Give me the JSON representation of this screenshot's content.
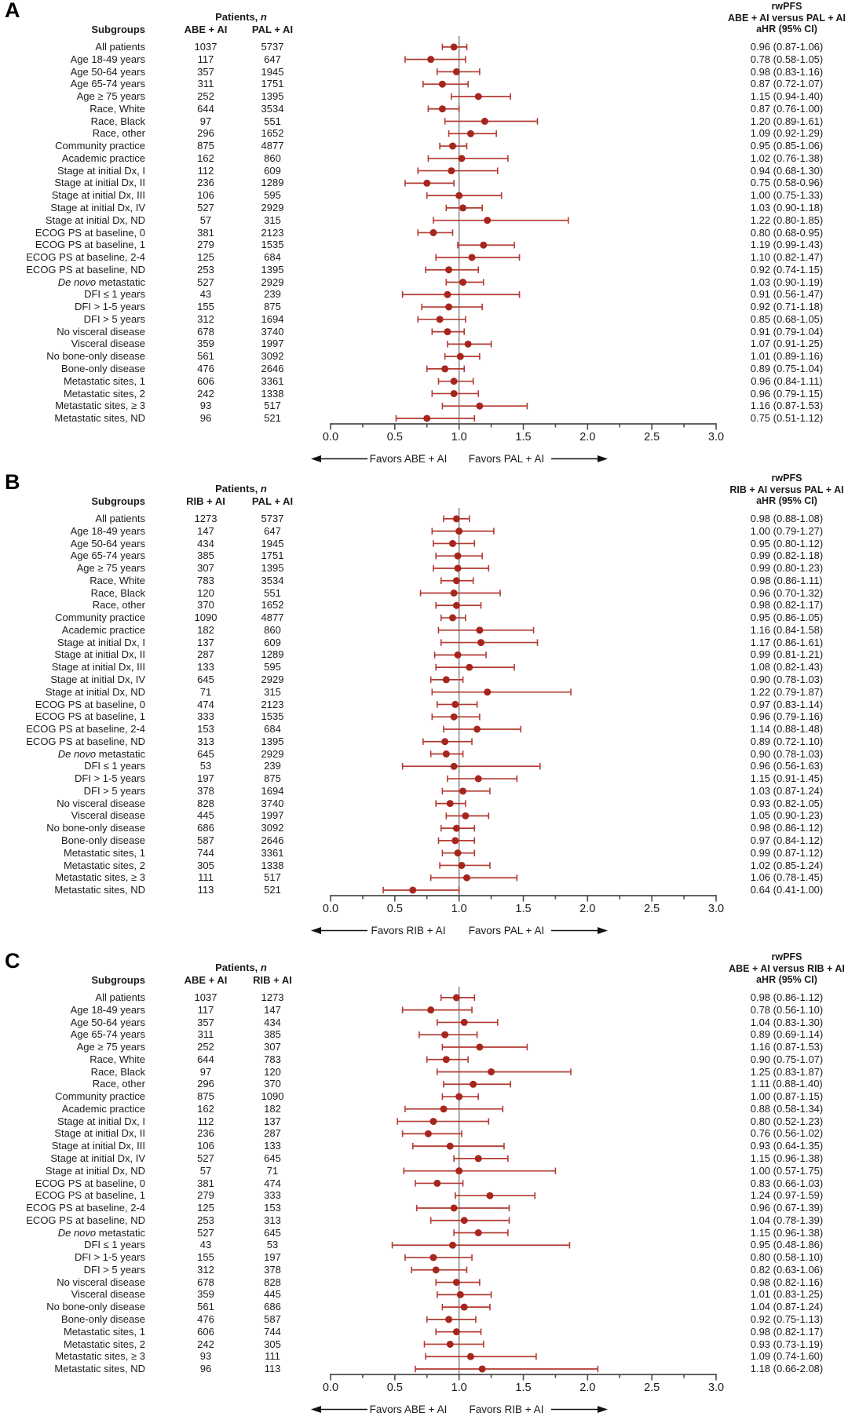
{
  "colors": {
    "marker": "#a6261e",
    "ci_line": "#b23a30",
    "axis": "#4c4c4c",
    "ref_line": "#8c8c8c",
    "arrow": "#111111",
    "text": "#1b1b1b"
  },
  "chart_data": {
    "type": "forest",
    "orientation": "horizontal",
    "x_axis": {
      "min": 0,
      "max": 3,
      "tick_labels": [
        "0.0",
        "0.5",
        "1.0",
        "1.5",
        "2.0",
        "2.5",
        "3.0"
      ],
      "major_tick_step": 0.5,
      "minor_tick_step": 0.25,
      "reference_line": 1.0,
      "grid": false
    },
    "headers": {
      "patients": "Patients,",
      "patients_n": "n",
      "subgroups": "Subgroups",
      "outcome": "rwPFS",
      "measure": "aHR (95% CI)"
    },
    "panels": [
      {
        "letter": "A",
        "col1": "ABE + AI",
        "col2": "PAL + AI",
        "comparison": "ABE + AI versus PAL + AI",
        "favors_left": "Favors ABE + AI",
        "favors_right": "Favors PAL + AI",
        "rows": [
          {
            "label": "All patients",
            "n1": "1037",
            "n2": "5737",
            "hr": 0.96,
            "lo": 0.87,
            "hi": 1.06
          },
          {
            "label": "Age 18-49 years",
            "n1": "117",
            "n2": "647",
            "hr": 0.78,
            "lo": 0.58,
            "hi": 1.05
          },
          {
            "label": "Age 50-64 years",
            "n1": "357",
            "n2": "1945",
            "hr": 0.98,
            "lo": 0.83,
            "hi": 1.16
          },
          {
            "label": "Age 65-74 years",
            "n1": "311",
            "n2": "1751",
            "hr": 0.87,
            "lo": 0.72,
            "hi": 1.07
          },
          {
            "label": "Age ≥ 75 years",
            "n1": "252",
            "n2": "1395",
            "hr": 1.15,
            "lo": 0.94,
            "hi": 1.4
          },
          {
            "label": "Race, White",
            "n1": "644",
            "n2": "3534",
            "hr": 0.87,
            "lo": 0.76,
            "hi": 1.0
          },
          {
            "label": "Race, Black",
            "n1": "97",
            "n2": "551",
            "hr": 1.2,
            "lo": 0.89,
            "hi": 1.61
          },
          {
            "label": "Race, other",
            "n1": "296",
            "n2": "1652",
            "hr": 1.09,
            "lo": 0.92,
            "hi": 1.29
          },
          {
            "label": "Community practice",
            "n1": "875",
            "n2": "4877",
            "hr": 0.95,
            "lo": 0.85,
            "hi": 1.06
          },
          {
            "label": "Academic practice",
            "n1": "162",
            "n2": "860",
            "hr": 1.02,
            "lo": 0.76,
            "hi": 1.38
          },
          {
            "label": "Stage at initial Dx, I",
            "n1": "112",
            "n2": "609",
            "hr": 0.94,
            "lo": 0.68,
            "hi": 1.3
          },
          {
            "label": "Stage at initial Dx, II",
            "n1": "236",
            "n2": "1289",
            "hr": 0.75,
            "lo": 0.58,
            "hi": 0.96
          },
          {
            "label": "Stage at initial Dx, III",
            "n1": "106",
            "n2": "595",
            "hr": 1.0,
            "lo": 0.75,
            "hi": 1.33
          },
          {
            "label": "Stage at initial Dx, IV",
            "n1": "527",
            "n2": "2929",
            "hr": 1.03,
            "lo": 0.9,
            "hi": 1.18
          },
          {
            "label": "Stage at initial Dx, ND",
            "n1": "57",
            "n2": "315",
            "hr": 1.22,
            "lo": 0.8,
            "hi": 1.85
          },
          {
            "label": "ECOG PS at baseline, 0",
            "n1": "381",
            "n2": "2123",
            "hr": 0.8,
            "lo": 0.68,
            "hi": 0.95
          },
          {
            "label": "ECOG PS at baseline, 1",
            "n1": "279",
            "n2": "1535",
            "hr": 1.19,
            "lo": 0.99,
            "hi": 1.43
          },
          {
            "label": "ECOG PS at baseline, 2-4",
            "n1": "125",
            "n2": "684",
            "hr": 1.1,
            "lo": 0.82,
            "hi": 1.47
          },
          {
            "label": "ECOG PS at baseline, ND",
            "n1": "253",
            "n2": "1395",
            "hr": 0.92,
            "lo": 0.74,
            "hi": 1.15
          },
          {
            "em": "De novo",
            "label": "metastatic",
            "n1": "527",
            "n2": "2929",
            "hr": 1.03,
            "lo": 0.9,
            "hi": 1.19
          },
          {
            "label": "DFI ≤ 1 years",
            "n1": "43",
            "n2": "239",
            "hr": 0.91,
            "lo": 0.56,
            "hi": 1.47
          },
          {
            "label": "DFI > 1-5 years",
            "n1": "155",
            "n2": "875",
            "hr": 0.92,
            "lo": 0.71,
            "hi": 1.18
          },
          {
            "label": "DFI > 5 years",
            "n1": "312",
            "n2": "1694",
            "hr": 0.85,
            "lo": 0.68,
            "hi": 1.05
          },
          {
            "label": "No visceral disease",
            "n1": "678",
            "n2": "3740",
            "hr": 0.91,
            "lo": 0.79,
            "hi": 1.04
          },
          {
            "label": "Visceral disease",
            "n1": "359",
            "n2": "1997",
            "hr": 1.07,
            "lo": 0.91,
            "hi": 1.25
          },
          {
            "label": "No bone-only disease",
            "n1": "561",
            "n2": "3092",
            "hr": 1.01,
            "lo": 0.89,
            "hi": 1.16
          },
          {
            "label": "Bone-only disease",
            "n1": "476",
            "n2": "2646",
            "hr": 0.89,
            "lo": 0.75,
            "hi": 1.04
          },
          {
            "label": "Metastatic sites, 1",
            "n1": "606",
            "n2": "3361",
            "hr": 0.96,
            "lo": 0.84,
            "hi": 1.11
          },
          {
            "label": "Metastatic sites, 2",
            "n1": "242",
            "n2": "1338",
            "hr": 0.96,
            "lo": 0.79,
            "hi": 1.15
          },
          {
            "label": "Metastatic sites, ≥ 3",
            "n1": "93",
            "n2": "517",
            "hr": 1.16,
            "lo": 0.87,
            "hi": 1.53
          },
          {
            "label": "Metastatic sites, ND",
            "n1": "96",
            "n2": "521",
            "hr": 0.75,
            "lo": 0.51,
            "hi": 1.12
          }
        ]
      },
      {
        "letter": "B",
        "col1": "RIB + AI",
        "col2": "PAL + AI",
        "comparison": "RIB + AI versus PAL + AI",
        "favors_left": "Favors RIB + AI",
        "favors_right": "Favors PAL + AI",
        "rows": [
          {
            "label": "All patients",
            "n1": "1273",
            "n2": "5737",
            "hr": 0.98,
            "lo": 0.88,
            "hi": 1.08
          },
          {
            "label": "Age 18-49 years",
            "n1": "147",
            "n2": "647",
            "hr": 1.0,
            "lo": 0.79,
            "hi": 1.27
          },
          {
            "label": "Age 50-64 years",
            "n1": "434",
            "n2": "1945",
            "hr": 0.95,
            "lo": 0.8,
            "hi": 1.12
          },
          {
            "label": "Age 65-74 years",
            "n1": "385",
            "n2": "1751",
            "hr": 0.99,
            "lo": 0.82,
            "hi": 1.18
          },
          {
            "label": "Age ≥ 75 years",
            "n1": "307",
            "n2": "1395",
            "hr": 0.99,
            "lo": 0.8,
            "hi": 1.23
          },
          {
            "label": "Race, White",
            "n1": "783",
            "n2": "3534",
            "hr": 0.98,
            "lo": 0.86,
            "hi": 1.11
          },
          {
            "label": "Race, Black",
            "n1": "120",
            "n2": "551",
            "hr": 0.96,
            "lo": 0.7,
            "hi": 1.32
          },
          {
            "label": "Race, other",
            "n1": "370",
            "n2": "1652",
            "hr": 0.98,
            "lo": 0.82,
            "hi": 1.17
          },
          {
            "label": "Community practice",
            "n1": "1090",
            "n2": "4877",
            "hr": 0.95,
            "lo": 0.86,
            "hi": 1.05
          },
          {
            "label": "Academic practice",
            "n1": "182",
            "n2": "860",
            "hr": 1.16,
            "lo": 0.84,
            "hi": 1.58
          },
          {
            "label": "Stage at initial Dx, I",
            "n1": "137",
            "n2": "609",
            "hr": 1.17,
            "lo": 0.86,
            "hi": 1.61
          },
          {
            "label": "Stage at initial Dx, II",
            "n1": "287",
            "n2": "1289",
            "hr": 0.99,
            "lo": 0.81,
            "hi": 1.21
          },
          {
            "label": "Stage at initial Dx, III",
            "n1": "133",
            "n2": "595",
            "hr": 1.08,
            "lo": 0.82,
            "hi": 1.43
          },
          {
            "label": "Stage at initial Dx, IV",
            "n1": "645",
            "n2": "2929",
            "hr": 0.9,
            "lo": 0.78,
            "hi": 1.03
          },
          {
            "label": "Stage at initial Dx, ND",
            "n1": "71",
            "n2": "315",
            "hr": 1.22,
            "lo": 0.79,
            "hi": 1.87
          },
          {
            "label": "ECOG PS at baseline, 0",
            "n1": "474",
            "n2": "2123",
            "hr": 0.97,
            "lo": 0.83,
            "hi": 1.14
          },
          {
            "label": "ECOG PS at baseline, 1",
            "n1": "333",
            "n2": "1535",
            "hr": 0.96,
            "lo": 0.79,
            "hi": 1.16
          },
          {
            "label": "ECOG PS at baseline, 2-4",
            "n1": "153",
            "n2": "684",
            "hr": 1.14,
            "lo": 0.88,
            "hi": 1.48
          },
          {
            "label": "ECOG PS at baseline, ND",
            "n1": "313",
            "n2": "1395",
            "hr": 0.89,
            "lo": 0.72,
            "hi": 1.1
          },
          {
            "em": "De novo",
            "label": "metastatic",
            "n1": "645",
            "n2": "2929",
            "hr": 0.9,
            "lo": 0.78,
            "hi": 1.03
          },
          {
            "label": "DFI ≤ 1 years",
            "n1": "53",
            "n2": "239",
            "hr": 0.96,
            "lo": 0.56,
            "hi": 1.63
          },
          {
            "label": "DFI > 1-5 years",
            "n1": "197",
            "n2": "875",
            "hr": 1.15,
            "lo": 0.91,
            "hi": 1.45
          },
          {
            "label": "DFI > 5 years",
            "n1": "378",
            "n2": "1694",
            "hr": 1.03,
            "lo": 0.87,
            "hi": 1.24
          },
          {
            "label": "No visceral disease",
            "n1": "828",
            "n2": "3740",
            "hr": 0.93,
            "lo": 0.82,
            "hi": 1.05
          },
          {
            "label": "Visceral disease",
            "n1": "445",
            "n2": "1997",
            "hr": 1.05,
            "lo": 0.9,
            "hi": 1.23
          },
          {
            "label": "No bone-only disease",
            "n1": "686",
            "n2": "3092",
            "hr": 0.98,
            "lo": 0.86,
            "hi": 1.12
          },
          {
            "label": "Bone-only disease",
            "n1": "587",
            "n2": "2646",
            "hr": 0.97,
            "lo": 0.84,
            "hi": 1.12
          },
          {
            "label": "Metastatic sites, 1",
            "n1": "744",
            "n2": "3361",
            "hr": 0.99,
            "lo": 0.87,
            "hi": 1.12
          },
          {
            "label": "Metastatic sites, 2",
            "n1": "305",
            "n2": "1338",
            "hr": 1.02,
            "lo": 0.85,
            "hi": 1.24
          },
          {
            "label": "Metastatic sites, ≥ 3",
            "n1": "111",
            "n2": "517",
            "hr": 1.06,
            "lo": 0.78,
            "hi": 1.45
          },
          {
            "label": "Metastatic sites, ND",
            "n1": "113",
            "n2": "521",
            "hr": 0.64,
            "lo": 0.41,
            "hi": 1.0
          }
        ]
      },
      {
        "letter": "C",
        "col1": "ABE + AI",
        "col2": "RIB + AI",
        "comparison": "ABE + AI versus RIB + AI",
        "favors_left": "Favors ABE + AI",
        "favors_right": "Favors RIB + AI",
        "rows": [
          {
            "label": "All patients",
            "n1": "1037",
            "n2": "1273",
            "hr": 0.98,
            "lo": 0.86,
            "hi": 1.12
          },
          {
            "label": "Age 18-49 years",
            "n1": "117",
            "n2": "147",
            "hr": 0.78,
            "lo": 0.56,
            "hi": 1.1
          },
          {
            "label": "Age 50-64 years",
            "n1": "357",
            "n2": "434",
            "hr": 1.04,
            "lo": 0.83,
            "hi": 1.3
          },
          {
            "label": "Age 65-74 years",
            "n1": "311",
            "n2": "385",
            "hr": 0.89,
            "lo": 0.69,
            "hi": 1.14
          },
          {
            "label": "Age ≥ 75 years",
            "n1": "252",
            "n2": "307",
            "hr": 1.16,
            "lo": 0.87,
            "hi": 1.53
          },
          {
            "label": "Race, White",
            "n1": "644",
            "n2": "783",
            "hr": 0.9,
            "lo": 0.75,
            "hi": 1.07
          },
          {
            "label": "Race, Black",
            "n1": "97",
            "n2": "120",
            "hr": 1.25,
            "lo": 0.83,
            "hi": 1.87
          },
          {
            "label": "Race, other",
            "n1": "296",
            "n2": "370",
            "hr": 1.11,
            "lo": 0.88,
            "hi": 1.4
          },
          {
            "label": "Community practice",
            "n1": "875",
            "n2": "1090",
            "hr": 1.0,
            "lo": 0.87,
            "hi": 1.15
          },
          {
            "label": "Academic practice",
            "n1": "162",
            "n2": "182",
            "hr": 0.88,
            "lo": 0.58,
            "hi": 1.34
          },
          {
            "label": "Stage at initial Dx, I",
            "n1": "112",
            "n2": "137",
            "hr": 0.8,
            "lo": 0.52,
            "hi": 1.23
          },
          {
            "label": "Stage at initial Dx, II",
            "n1": "236",
            "n2": "287",
            "hr": 0.76,
            "lo": 0.56,
            "hi": 1.02
          },
          {
            "label": "Stage at initial Dx, III",
            "n1": "106",
            "n2": "133",
            "hr": 0.93,
            "lo": 0.64,
            "hi": 1.35
          },
          {
            "label": "Stage at initial Dx, IV",
            "n1": "527",
            "n2": "645",
            "hr": 1.15,
            "lo": 0.96,
            "hi": 1.38
          },
          {
            "label": "Stage at initial Dx, ND",
            "n1": "57",
            "n2": "71",
            "hr": 1.0,
            "lo": 0.57,
            "hi": 1.75
          },
          {
            "label": "ECOG PS at baseline, 0",
            "n1": "381",
            "n2": "474",
            "hr": 0.83,
            "lo": 0.66,
            "hi": 1.03
          },
          {
            "label": "ECOG PS at baseline, 1",
            "n1": "279",
            "n2": "333",
            "hr": 1.24,
            "lo": 0.97,
            "hi": 1.59
          },
          {
            "label": "ECOG PS at baseline, 2-4",
            "n1": "125",
            "n2": "153",
            "hr": 0.96,
            "lo": 0.67,
            "hi": 1.39
          },
          {
            "label": "ECOG PS at baseline, ND",
            "n1": "253",
            "n2": "313",
            "hr": 1.04,
            "lo": 0.78,
            "hi": 1.39
          },
          {
            "em": "De novo",
            "label": "metastatic",
            "n1": "527",
            "n2": "645",
            "hr": 1.15,
            "lo": 0.96,
            "hi": 1.38
          },
          {
            "label": "DFI ≤ 1 years",
            "n1": "43",
            "n2": "53",
            "hr": 0.95,
            "lo": 0.48,
            "hi": 1.86
          },
          {
            "label": "DFI > 1-5 years",
            "n1": "155",
            "n2": "197",
            "hr": 0.8,
            "lo": 0.58,
            "hi": 1.1
          },
          {
            "label": "DFI > 5 years",
            "n1": "312",
            "n2": "378",
            "hr": 0.82,
            "lo": 0.63,
            "hi": 1.06
          },
          {
            "label": "No visceral disease",
            "n1": "678",
            "n2": "828",
            "hr": 0.98,
            "lo": 0.82,
            "hi": 1.16
          },
          {
            "label": "Visceral disease",
            "n1": "359",
            "n2": "445",
            "hr": 1.01,
            "lo": 0.83,
            "hi": 1.25
          },
          {
            "label": "No bone-only disease",
            "n1": "561",
            "n2": "686",
            "hr": 1.04,
            "lo": 0.87,
            "hi": 1.24
          },
          {
            "label": "Bone-only disease",
            "n1": "476",
            "n2": "587",
            "hr": 0.92,
            "lo": 0.75,
            "hi": 1.13
          },
          {
            "label": "Metastatic sites, 1",
            "n1": "606",
            "n2": "744",
            "hr": 0.98,
            "lo": 0.82,
            "hi": 1.17
          },
          {
            "label": "Metastatic sites, 2",
            "n1": "242",
            "n2": "305",
            "hr": 0.93,
            "lo": 0.73,
            "hi": 1.19
          },
          {
            "label": "Metastatic sites, ≥ 3",
            "n1": "93",
            "n2": "111",
            "hr": 1.09,
            "lo": 0.74,
            "hi": 1.6
          },
          {
            "label": "Metastatic sites, ND",
            "n1": "96",
            "n2": "113",
            "hr": 1.18,
            "lo": 0.66,
            "hi": 2.08
          }
        ]
      }
    ]
  }
}
